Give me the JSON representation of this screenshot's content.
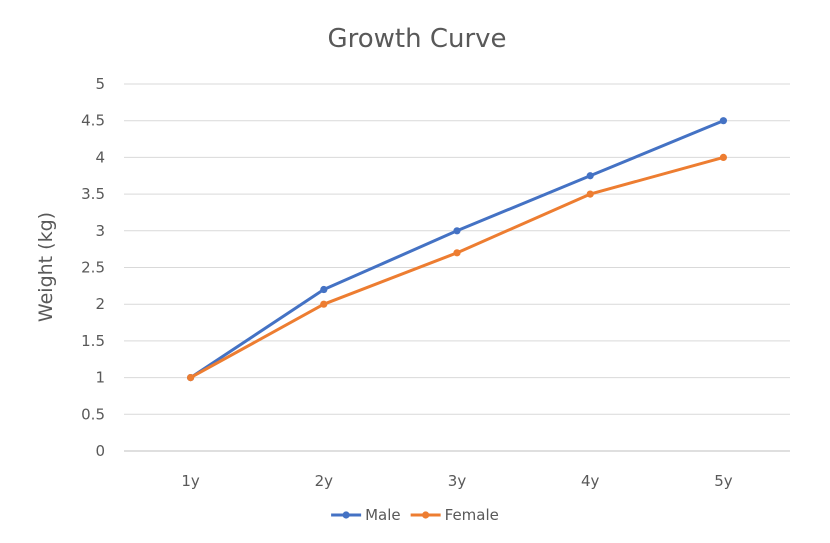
{
  "chart_data": {
    "type": "line",
    "title": "Growth Curve",
    "xlabel": "",
    "ylabel": "Weight (kg)",
    "categories": [
      "1y",
      "2y",
      "3y",
      "4y",
      "5y"
    ],
    "ylim": [
      0,
      5
    ],
    "yticks": [
      0,
      0.5,
      1,
      1.5,
      2,
      2.5,
      3,
      3.5,
      4,
      4.5,
      5
    ],
    "grid": true,
    "legend_position": "bottom",
    "series": [
      {
        "name": "Male",
        "color": "#4472c4",
        "values": [
          1.0,
          2.2,
          3.0,
          3.75,
          4.5
        ]
      },
      {
        "name": "Female",
        "color": "#ed7d31",
        "values": [
          1.0,
          2.0,
          2.7,
          3.5,
          4.0
        ]
      }
    ]
  }
}
